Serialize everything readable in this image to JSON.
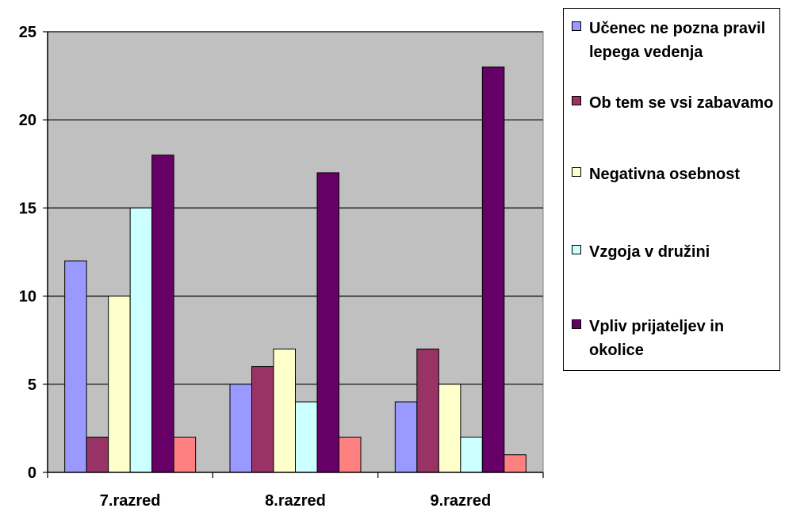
{
  "chart_data": {
    "type": "bar",
    "categories": [
      "7.razred",
      "8.razred",
      "9.razred"
    ],
    "series": [
      {
        "name": "Učenec ne pozna pravil lepega vedenja",
        "color": "#9999ff",
        "values": [
          12,
          5,
          4
        ]
      },
      {
        "name": "Ob tem se vsi zabavamo",
        "color": "#993366",
        "values": [
          2,
          6,
          7
        ]
      },
      {
        "name": "Negativna osebnost",
        "color": "#ffffcc",
        "values": [
          10,
          7,
          5
        ]
      },
      {
        "name": "Vzgoja v družini",
        "color": "#ccffff",
        "values": [
          15,
          4,
          2
        ]
      },
      {
        "name": "Vpliv prijateljev in okolice",
        "color": "#660066",
        "values": [
          18,
          17,
          23
        ]
      },
      {
        "name": "",
        "color": "#ff8080",
        "values": [
          2,
          2,
          1
        ]
      }
    ],
    "yticks": [
      "0",
      "5",
      "10",
      "15",
      "20",
      "25"
    ],
    "ylim": [
      0,
      25
    ],
    "grid": true,
    "plot_background": "#c0c0c0",
    "legend_position": "right",
    "title": "",
    "xlabel": "",
    "ylabel": ""
  }
}
